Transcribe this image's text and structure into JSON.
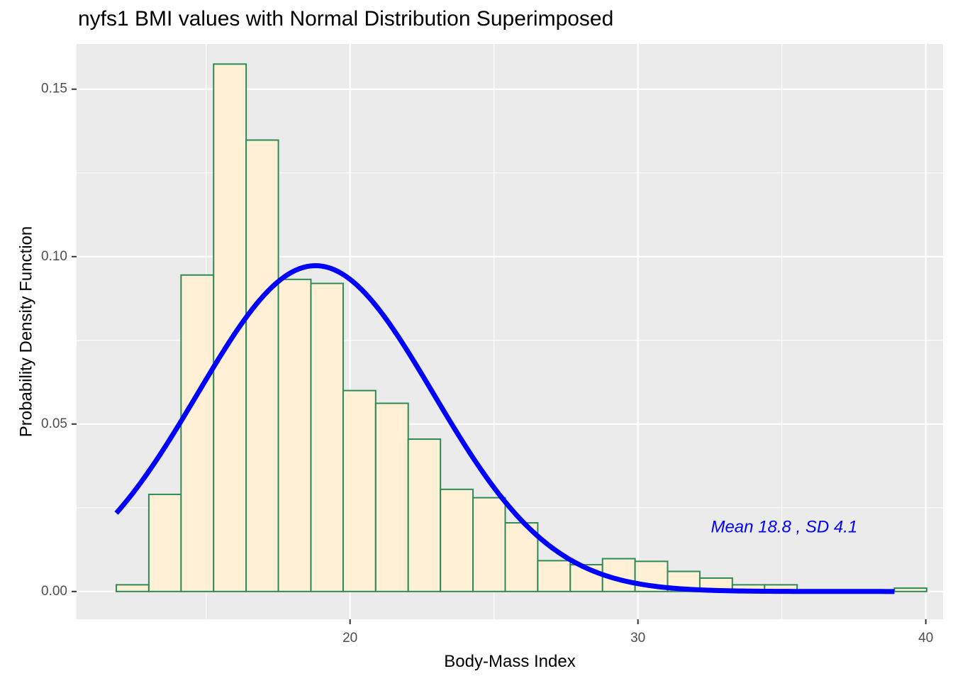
{
  "chart_data": {
    "type": "bar",
    "title": "nyfs1 BMI values with Normal Distribution Superimposed",
    "xlabel": "Body-Mass Index",
    "ylabel": "Probability Density Function",
    "xlim": [
      10.5,
      40.6
    ],
    "ylim": [
      -0.0083,
      0.1635
    ],
    "x_ticks": [
      20,
      30,
      40
    ],
    "x_tick_labels": [
      "20",
      "30",
      "40"
    ],
    "y_ticks": [
      0,
      0.05,
      0.1,
      0.15
    ],
    "y_tick_labels": [
      "0.00",
      "0.05",
      "0.10",
      "0.15"
    ],
    "grid": true,
    "histogram": {
      "bin_edges": [
        11.88,
        13.01,
        14.13,
        15.26,
        16.39,
        17.51,
        18.64,
        19.76,
        20.89,
        22.02,
        23.14,
        24.27,
        25.39,
        26.52,
        27.65,
        28.77,
        29.9,
        31.03,
        32.15,
        33.28,
        34.4,
        35.53,
        36.66,
        37.78,
        38.91,
        40.03
      ],
      "density": [
        0.002,
        0.029,
        0.0945,
        0.1575,
        0.1348,
        0.0932,
        0.092,
        0.06,
        0.0562,
        0.0455,
        0.0305,
        0.028,
        0.0205,
        0.0092,
        0.008,
        0.0098,
        0.009,
        0.006,
        0.004,
        0.002,
        0.002,
        0.0005,
        0.0005,
        0.0005,
        0.001
      ],
      "fill": "#FFF0D6",
      "outline": "#2E8B57"
    },
    "normal_curve": {
      "mean": 18.8,
      "sd": 4.1,
      "x_range": [
        11.88,
        38.91
      ],
      "color": "#0000FF"
    },
    "annotation": {
      "text": "Mean 18.8 , SD 4.1",
      "x": 32,
      "y": 0.019,
      "color": "#0000FF"
    }
  },
  "colors": {
    "panel_background": "#EBEBEB",
    "grid_major": "#FFFFFF"
  }
}
